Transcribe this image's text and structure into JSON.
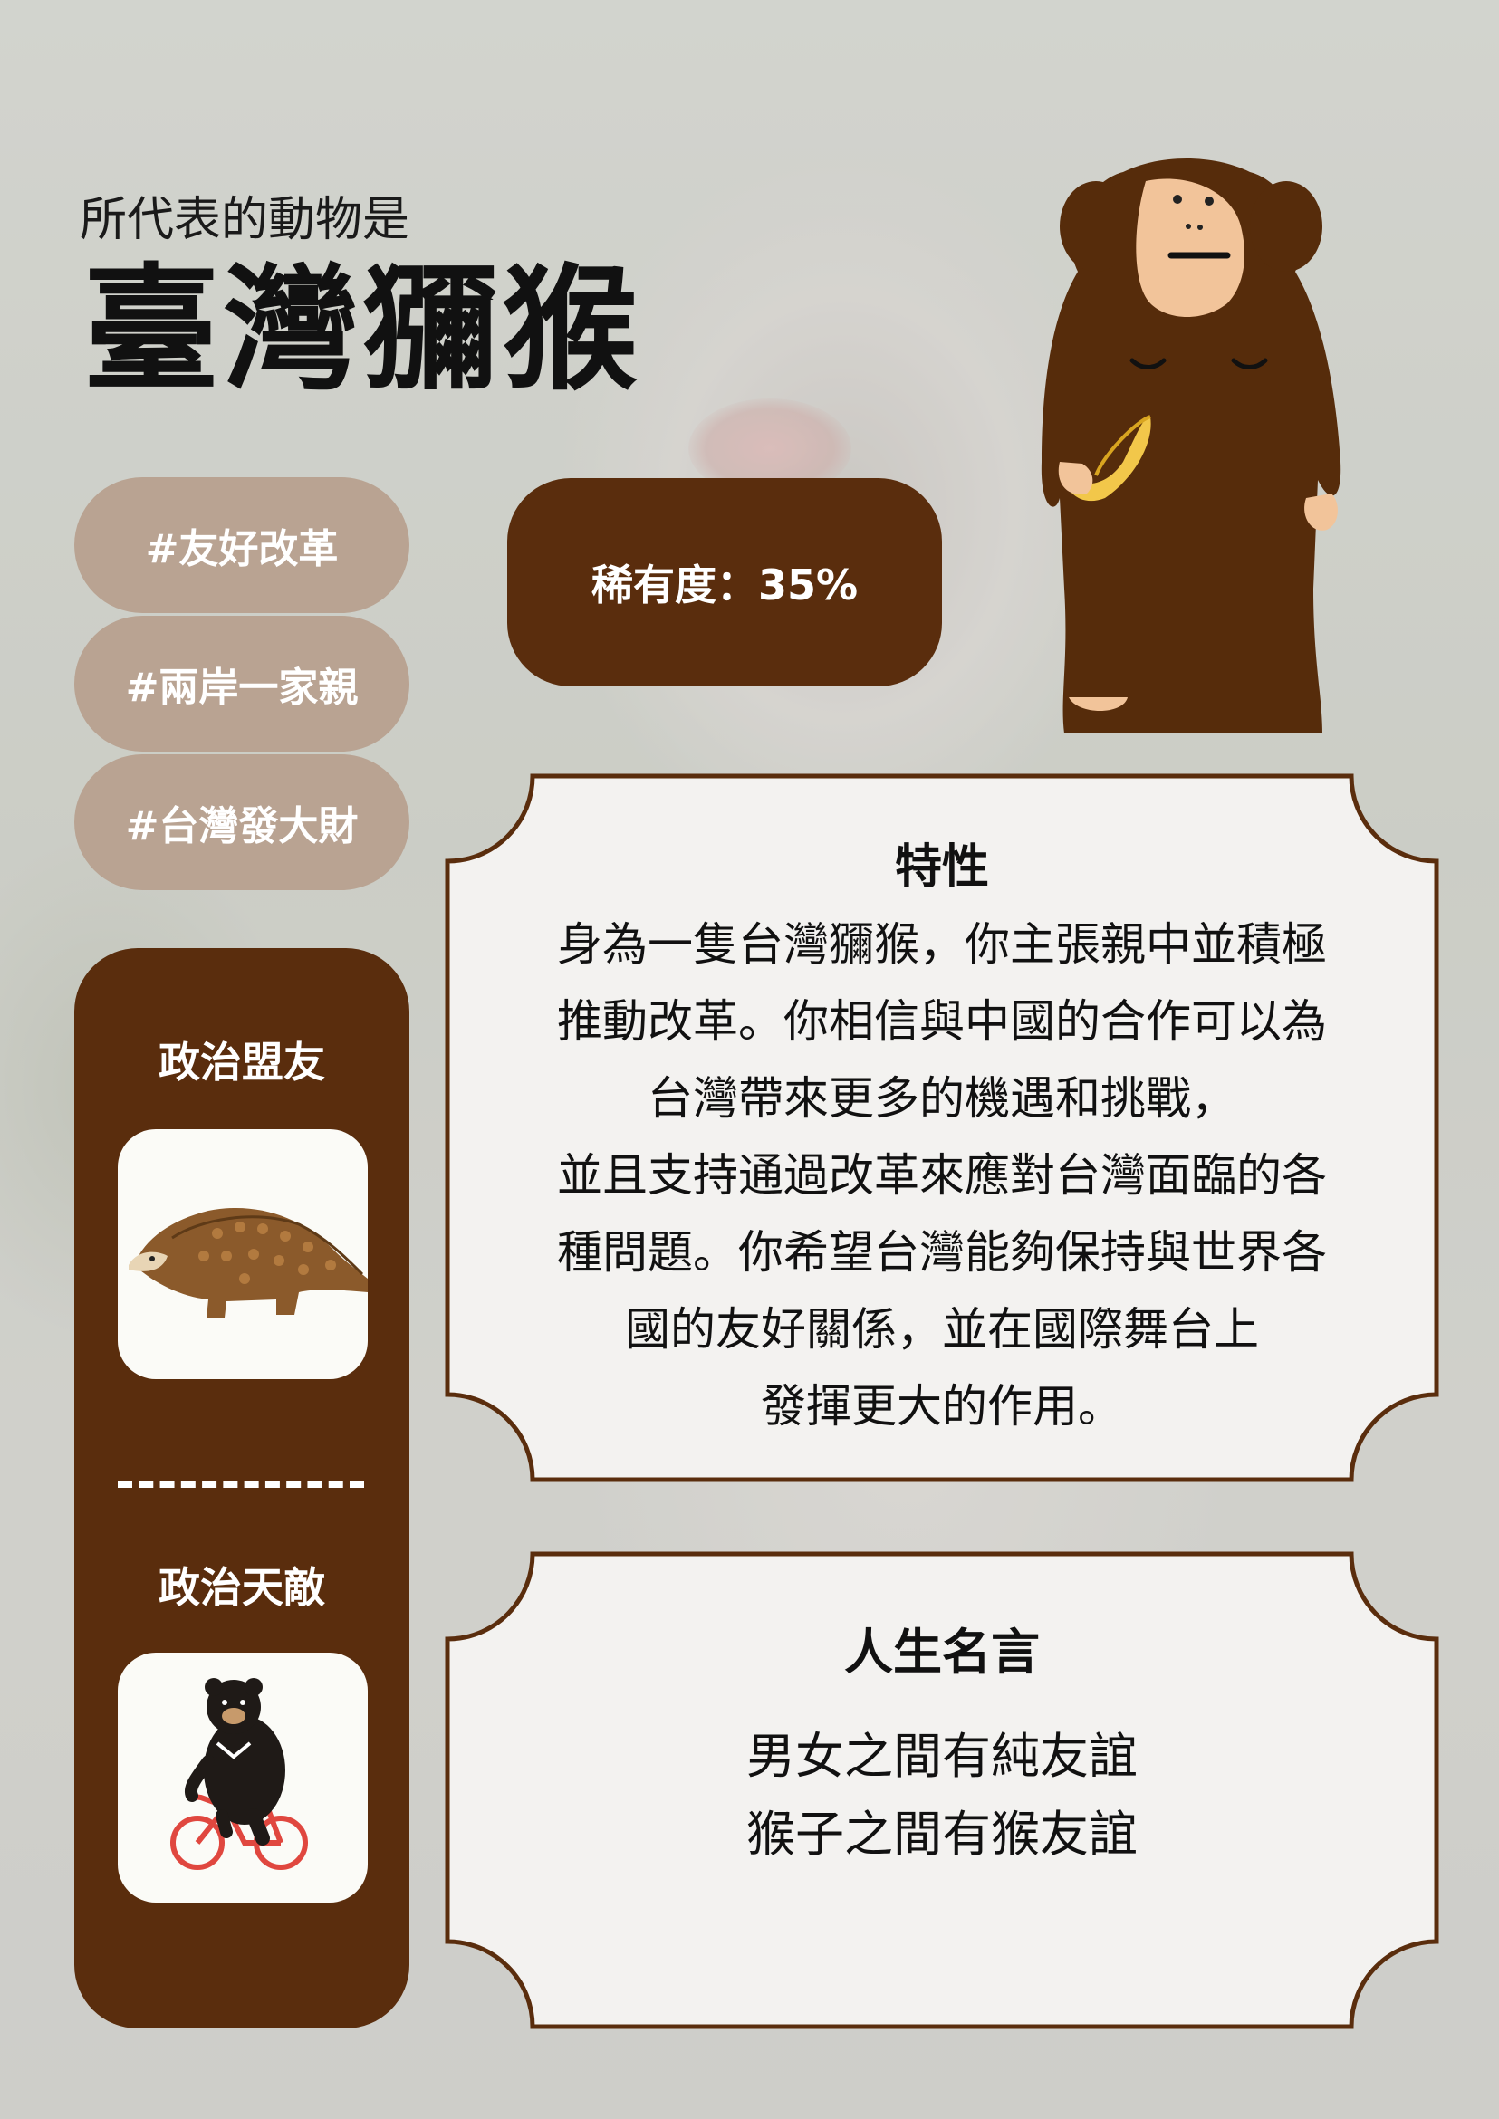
{
  "header": {
    "subtitle": "所代表的動物是",
    "title": "臺灣獼猴"
  },
  "tags": [
    "#友好改革",
    "#兩岸一家親",
    "#台灣發大財"
  ],
  "rarity": "稀有度：35%",
  "sidebar": {
    "ally_heading": "政治盟友",
    "enemy_heading": "政治天敵"
  },
  "traits": {
    "heading": "特性",
    "lines": [
      "身為一隻台灣獼猴，你主張親中並積極",
      "推動改革。你相信與中國的合作可以為",
      "台灣帶來更多的機遇和挑戰，",
      "並且支持通過改革來應對台灣面臨的各",
      "種問題。你希望台灣能夠保持與世界各",
      "國的友好關係，並在國際舞台上",
      "發揮更大的作用。"
    ]
  },
  "motto": {
    "heading": "人生名言",
    "lines": [
      "男女之間有純友誼",
      "猴子之間有猴友誼"
    ]
  },
  "colors": {
    "brown": "#5a2d0d",
    "tag": "#b9a392",
    "panel": "#f3f2f0"
  },
  "icons": {
    "mascot": "monkey-holding-banana-icon",
    "ally": "pangolin-icon",
    "enemy": "bear-on-bicycle-icon"
  }
}
